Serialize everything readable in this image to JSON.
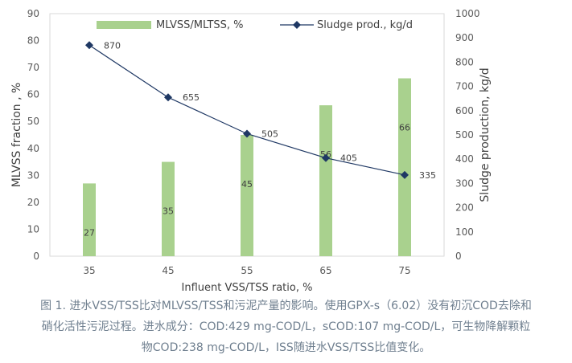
{
  "chart_data": {
    "type": "bar+line",
    "categories": [
      "35",
      "45",
      "55",
      "65",
      "75"
    ],
    "xlabel": "Influent VSS/TSS ratio, %",
    "series": [
      {
        "name": "MLVSS/MLTSS, %",
        "type": "bar",
        "axis": "left",
        "color": "#a9d18e",
        "values": [
          27,
          35,
          45,
          56,
          66
        ]
      },
      {
        "name": "Sludge prod., kg/d",
        "type": "line",
        "axis": "right",
        "color": "#1f3864",
        "marker": "diamond",
        "values": [
          870,
          655,
          505,
          405,
          335
        ]
      }
    ],
    "left_axis": {
      "label": "MLVSS fraction , %",
      "range": [
        0,
        90
      ],
      "step": 10
    },
    "right_axis": {
      "label": "Sludge production, kg/d",
      "range": [
        0,
        1000
      ],
      "step": 100
    },
    "legend": "top",
    "grid": false
  },
  "caption": {
    "lines": [
      "图 1. 进水VSS/TSS比对MLVSS/TSS和污泥产量的影响。使用GPX-s（6.02）没有初沉COD去除和",
      "硝化活性污泥过程。进水成分：COD:429 mg-COD/L，sCOD:107 mg-COD/L，可生物降解颗粒",
      "物COD:238 mg-COD/L，ISS随进水VSS/TSS比值变化。"
    ]
  }
}
